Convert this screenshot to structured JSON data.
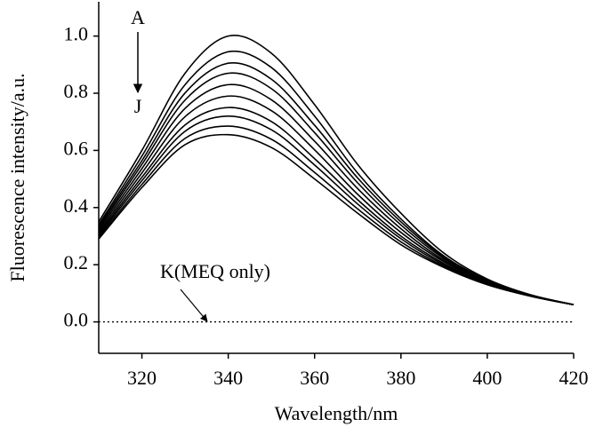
{
  "chart_data": {
    "type": "line",
    "xlabel": "Wavelength/nm",
    "ylabel": "Fluorescence intensity/a.u.",
    "x": [
      310,
      320,
      330,
      340,
      350,
      360,
      370,
      380,
      390,
      400,
      410,
      420
    ],
    "xlim": [
      310,
      420
    ],
    "xticks": [
      320,
      340,
      360,
      380,
      400,
      420
    ],
    "ylim": [
      -0.11,
      1.12
    ],
    "yticks": [
      {
        "value": 0,
        "label": "0.0"
      },
      0.2,
      0.4,
      0.6,
      0.8,
      {
        "value": 1,
        "label": "1.0"
      }
    ],
    "series": [
      {
        "color": "#000000",
        "values": [
          0.35,
          0.6,
          0.87,
          1.0,
          0.94,
          0.76,
          0.55,
          0.38,
          0.24,
          0.15,
          0.095,
          0.06
        ]
      },
      {
        "color": "#000000",
        "values": [
          0.34,
          0.58,
          0.83,
          0.945,
          0.89,
          0.72,
          0.52,
          0.36,
          0.23,
          0.147,
          0.094,
          0.06
        ]
      },
      {
        "color": "#000000",
        "values": [
          0.334,
          0.564,
          0.801,
          0.905,
          0.849,
          0.688,
          0.503,
          0.35,
          0.226,
          0.145,
          0.094,
          0.06
        ]
      },
      {
        "color": "#000000",
        "values": [
          0.327,
          0.551,
          0.776,
          0.87,
          0.816,
          0.662,
          0.486,
          0.339,
          0.221,
          0.142,
          0.093,
          0.06
        ]
      },
      {
        "color": "#000000",
        "values": [
          0.32,
          0.536,
          0.747,
          0.83,
          0.777,
          0.632,
          0.466,
          0.326,
          0.215,
          0.14,
          0.093,
          0.06
        ]
      },
      {
        "color": "#000000",
        "values": [
          0.313,
          0.521,
          0.718,
          0.79,
          0.739,
          0.602,
          0.446,
          0.313,
          0.21,
          0.138,
          0.092,
          0.06
        ]
      },
      {
        "color": "#000000",
        "values": [
          0.307,
          0.506,
          0.689,
          0.75,
          0.701,
          0.571,
          0.427,
          0.3,
          0.204,
          0.135,
          0.091,
          0.06
        ]
      },
      {
        "color": "#000000",
        "values": [
          0.301,
          0.494,
          0.667,
          0.72,
          0.672,
          0.549,
          0.412,
          0.291,
          0.199,
          0.134,
          0.091,
          0.06
        ]
      },
      {
        "color": "#000000",
        "values": [
          0.295,
          0.481,
          0.642,
          0.685,
          0.639,
          0.523,
          0.395,
          0.28,
          0.194,
          0.132,
          0.09,
          0.06
        ]
      },
      {
        "color": "#000000",
        "values": [
          0.29,
          0.47,
          0.62,
          0.655,
          0.61,
          0.5,
          0.38,
          0.27,
          0.19,
          0.13,
          0.09,
          0.06
        ]
      },
      {
        "color": "#000000",
        "style": "dotted",
        "values": [
          0,
          0,
          0,
          0,
          0,
          0,
          0,
          0,
          0,
          0,
          0,
          0
        ]
      }
    ],
    "annotations": [
      "A",
      "J",
      "K(MEQ only)"
    ]
  }
}
